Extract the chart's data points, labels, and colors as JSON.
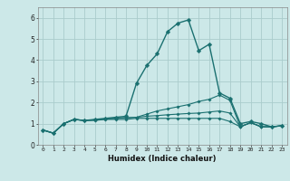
{
  "xlabel": "Humidex (Indice chaleur)",
  "bg_color": "#cce8e8",
  "grid_color": "#aacccc",
  "line_color": "#1a7070",
  "x_values": [
    0,
    1,
    2,
    3,
    4,
    5,
    6,
    7,
    8,
    9,
    10,
    11,
    12,
    13,
    14,
    15,
    16,
    17,
    18,
    19,
    20,
    21,
    22,
    23
  ],
  "series": [
    [
      0.7,
      0.55,
      1.0,
      1.2,
      1.15,
      1.15,
      1.2,
      1.2,
      1.2,
      1.25,
      1.25,
      1.25,
      1.25,
      1.25,
      1.25,
      1.25,
      1.25,
      1.25,
      1.1,
      0.85,
      1.05,
      0.85,
      0.85,
      0.9
    ],
    [
      0.7,
      0.55,
      1.0,
      1.2,
      1.15,
      1.18,
      1.22,
      1.25,
      1.28,
      1.3,
      1.45,
      1.6,
      1.7,
      1.8,
      1.9,
      2.05,
      2.15,
      2.35,
      2.1,
      0.85,
      1.05,
      0.85,
      0.85,
      0.9
    ],
    [
      0.7,
      0.55,
      1.0,
      1.2,
      1.15,
      1.18,
      1.22,
      1.25,
      1.28,
      1.3,
      1.35,
      1.38,
      1.42,
      1.45,
      1.48,
      1.5,
      1.55,
      1.6,
      1.5,
      0.85,
      1.05,
      0.85,
      0.85,
      0.9
    ],
    [
      0.7,
      0.55,
      1.0,
      1.2,
      1.15,
      1.2,
      1.25,
      1.3,
      1.35,
      2.9,
      3.75,
      4.3,
      5.35,
      5.75,
      5.9,
      4.45,
      4.75,
      2.45,
      2.2,
      1.0,
      1.1,
      1.0,
      0.85,
      0.9
    ]
  ],
  "xlim": [
    -0.5,
    23.5
  ],
  "ylim": [
    0,
    6.5
  ],
  "yticks": [
    0,
    1,
    2,
    3,
    4,
    5,
    6
  ],
  "xticks": [
    0,
    1,
    2,
    3,
    4,
    5,
    6,
    7,
    8,
    9,
    10,
    11,
    12,
    13,
    14,
    15,
    16,
    17,
    18,
    19,
    20,
    21,
    22,
    23
  ]
}
